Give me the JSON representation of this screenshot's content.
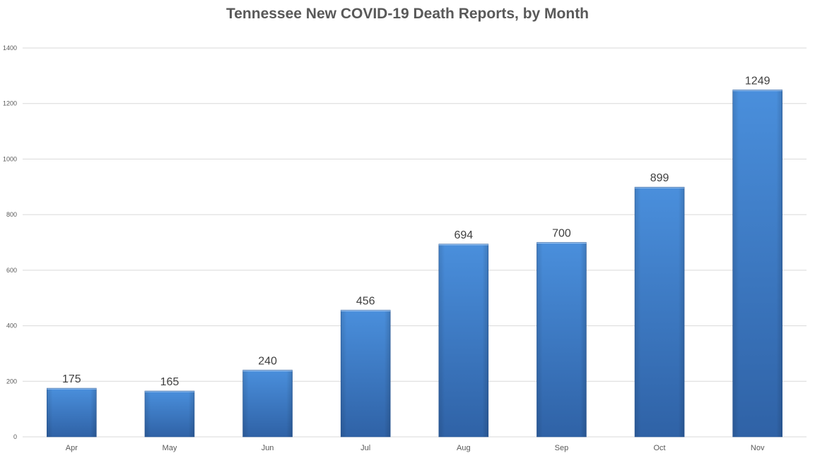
{
  "chart_data": {
    "type": "bar",
    "title": "Tennessee New COVID-19 Death Reports, by Month",
    "xlabel": "",
    "ylabel": "",
    "categories": [
      "Apr",
      "May",
      "Jun",
      "Jul",
      "Aug",
      "Sep",
      "Oct",
      "Nov"
    ],
    "values": [
      175,
      165,
      240,
      456,
      694,
      700,
      899,
      1249
    ],
    "ylim": [
      0,
      1400
    ],
    "yticks": [
      0,
      200,
      400,
      600,
      800,
      1000,
      1200,
      1400
    ],
    "grid": true,
    "legend": "none",
    "colors": {
      "bar_light": "#4a8fdc",
      "bar_dark": "#2f62a6",
      "grid": "#d9d9d9",
      "text": "#595959"
    }
  }
}
